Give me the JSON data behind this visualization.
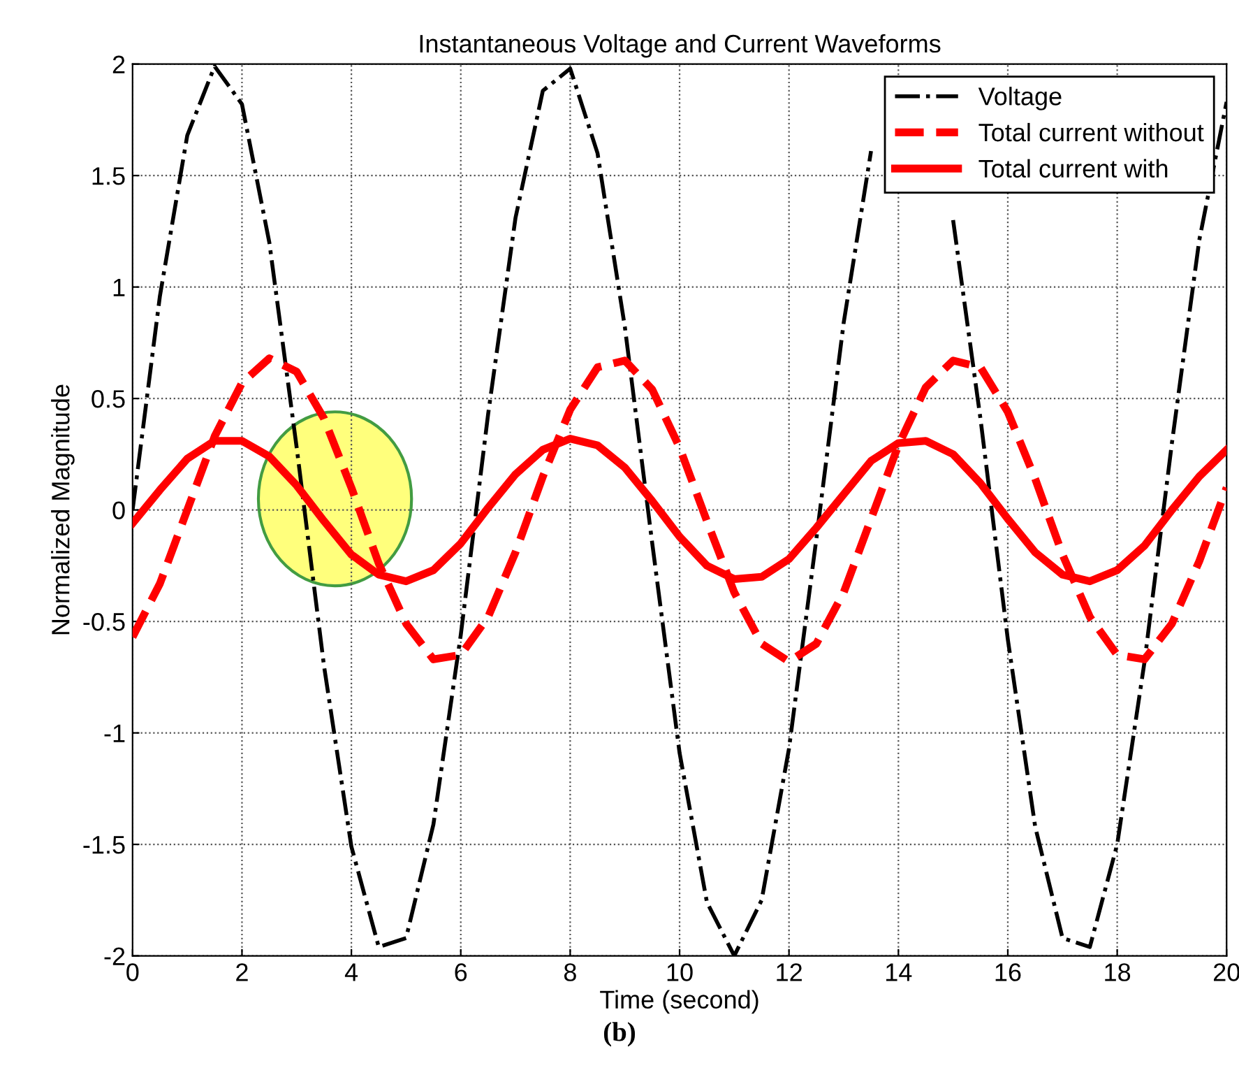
{
  "chart_data": {
    "type": "line",
    "title": "Instantaneous Voltage and Current Waveforms",
    "xlabel": "Time (second)",
    "ylabel": "Normalized Magnitude",
    "annotations": [
      "(b)"
    ],
    "x": [
      0,
      0.5,
      1,
      1.5,
      2,
      2.5,
      3,
      3.5,
      4,
      4.5,
      5,
      5.5,
      6,
      6.5,
      7,
      7.5,
      8,
      8.5,
      9,
      9.5,
      10,
      10.5,
      11,
      11.5,
      12,
      12.5,
      13,
      13.5,
      14,
      14.5,
      15,
      15.5,
      16,
      16.5,
      17,
      17.5,
      18,
      18.5,
      19,
      19.5,
      20
    ],
    "series": [
      {
        "name": "Voltage",
        "color": "#000000",
        "line_style": "dashdot",
        "values": [
          0,
          0.96,
          1.68,
          1.99,
          1.82,
          1.2,
          0.28,
          -0.7,
          -1.51,
          -1.96,
          -1.92,
          -1.41,
          -0.56,
          0.43,
          1.31,
          1.88,
          1.98,
          1.6,
          0.82,
          -0.15,
          -1.09,
          -1.76,
          -2,
          -1.75,
          -1.07,
          -0.13,
          0.84,
          1.61,
          null,
          null,
          1.3,
          0.41,
          -0.58,
          -1.42,
          -1.92,
          -1.96,
          -1.5,
          -0.68,
          0.3,
          1.21,
          1.83
        ]
      },
      {
        "name": "Total current without",
        "color": "#ff0000",
        "line_style": "dashed",
        "values": [
          -0.57,
          -0.33,
          0,
          0.33,
          0.57,
          0.68,
          0.62,
          0.41,
          0.1,
          -0.24,
          -0.51,
          -0.67,
          -0.65,
          -0.48,
          -0.19,
          0.15,
          0.45,
          0.64,
          0.67,
          0.54,
          0.28,
          -0.05,
          -0.37,
          -0.6,
          -0.68,
          -0.6,
          -0.37,
          -0.04,
          0.29,
          0.55,
          0.67,
          0.64,
          0.44,
          0.14,
          -0.2,
          -0.48,
          -0.65,
          -0.67,
          -0.51,
          -0.23,
          0.1
        ]
      },
      {
        "name": "Total current with",
        "color": "#ff0000",
        "line_style": "solid",
        "values": [
          -0.06,
          0.09,
          0.23,
          0.31,
          0.31,
          0.24,
          0.11,
          -0.05,
          -0.2,
          -0.29,
          -0.32,
          -0.27,
          -0.15,
          0.01,
          0.16,
          0.27,
          0.32,
          0.29,
          0.19,
          0.04,
          -0.12,
          -0.25,
          -0.31,
          -0.3,
          -0.22,
          -0.08,
          0.07,
          0.22,
          0.3,
          0.31,
          0.25,
          0.12,
          -0.04,
          -0.19,
          -0.29,
          -0.32,
          -0.27,
          -0.16,
          0,
          0.15,
          0.27
        ]
      }
    ],
    "xlim": [
      0,
      20
    ],
    "ylim": [
      -2,
      2
    ],
    "xticks": [
      0,
      2,
      4,
      6,
      8,
      10,
      12,
      14,
      16,
      18,
      20
    ],
    "yticks": [
      -2,
      -1.5,
      -1,
      -0.5,
      0,
      0.5,
      1,
      1.5,
      2
    ],
    "grid": true,
    "legend": "top right",
    "marker": "none"
  }
}
